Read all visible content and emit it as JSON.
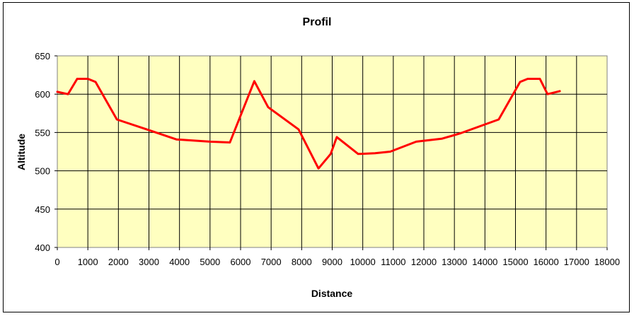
{
  "chart_data": {
    "type": "line",
    "title": "Profil",
    "xlabel": "Distance",
    "ylabel": "Altitude",
    "xlim": [
      0,
      18000
    ],
    "ylim": [
      400,
      650
    ],
    "xticks": [
      0,
      1000,
      2000,
      3000,
      4000,
      5000,
      6000,
      7000,
      8000,
      9000,
      10000,
      11000,
      12000,
      13000,
      14000,
      15000,
      16000,
      17000,
      18000
    ],
    "yticks": [
      400,
      450,
      500,
      550,
      600,
      650
    ],
    "grid": true,
    "legend": "none",
    "series": [
      {
        "color": "#ff0000",
        "points": [
          [
            0,
            603
          ],
          [
            350,
            600
          ],
          [
            650,
            620
          ],
          [
            1000,
            620
          ],
          [
            1250,
            616
          ],
          [
            1950,
            567
          ],
          [
            3000,
            553
          ],
          [
            3900,
            541
          ],
          [
            5000,
            538
          ],
          [
            5650,
            537
          ],
          [
            6450,
            617
          ],
          [
            6900,
            583
          ],
          [
            7900,
            554
          ],
          [
            8550,
            503
          ],
          [
            8950,
            522
          ],
          [
            9150,
            544
          ],
          [
            9850,
            522
          ],
          [
            10400,
            523
          ],
          [
            10900,
            525
          ],
          [
            11750,
            538
          ],
          [
            12600,
            542
          ],
          [
            13200,
            549
          ],
          [
            14450,
            567
          ],
          [
            15150,
            616
          ],
          [
            15400,
            620
          ],
          [
            15800,
            620
          ],
          [
            16050,
            600
          ],
          [
            16450,
            604
          ]
        ]
      }
    ]
  },
  "colors": {
    "plot_background": "#ffffc0",
    "grid": "#000000",
    "series_line": "#ff0000"
  }
}
